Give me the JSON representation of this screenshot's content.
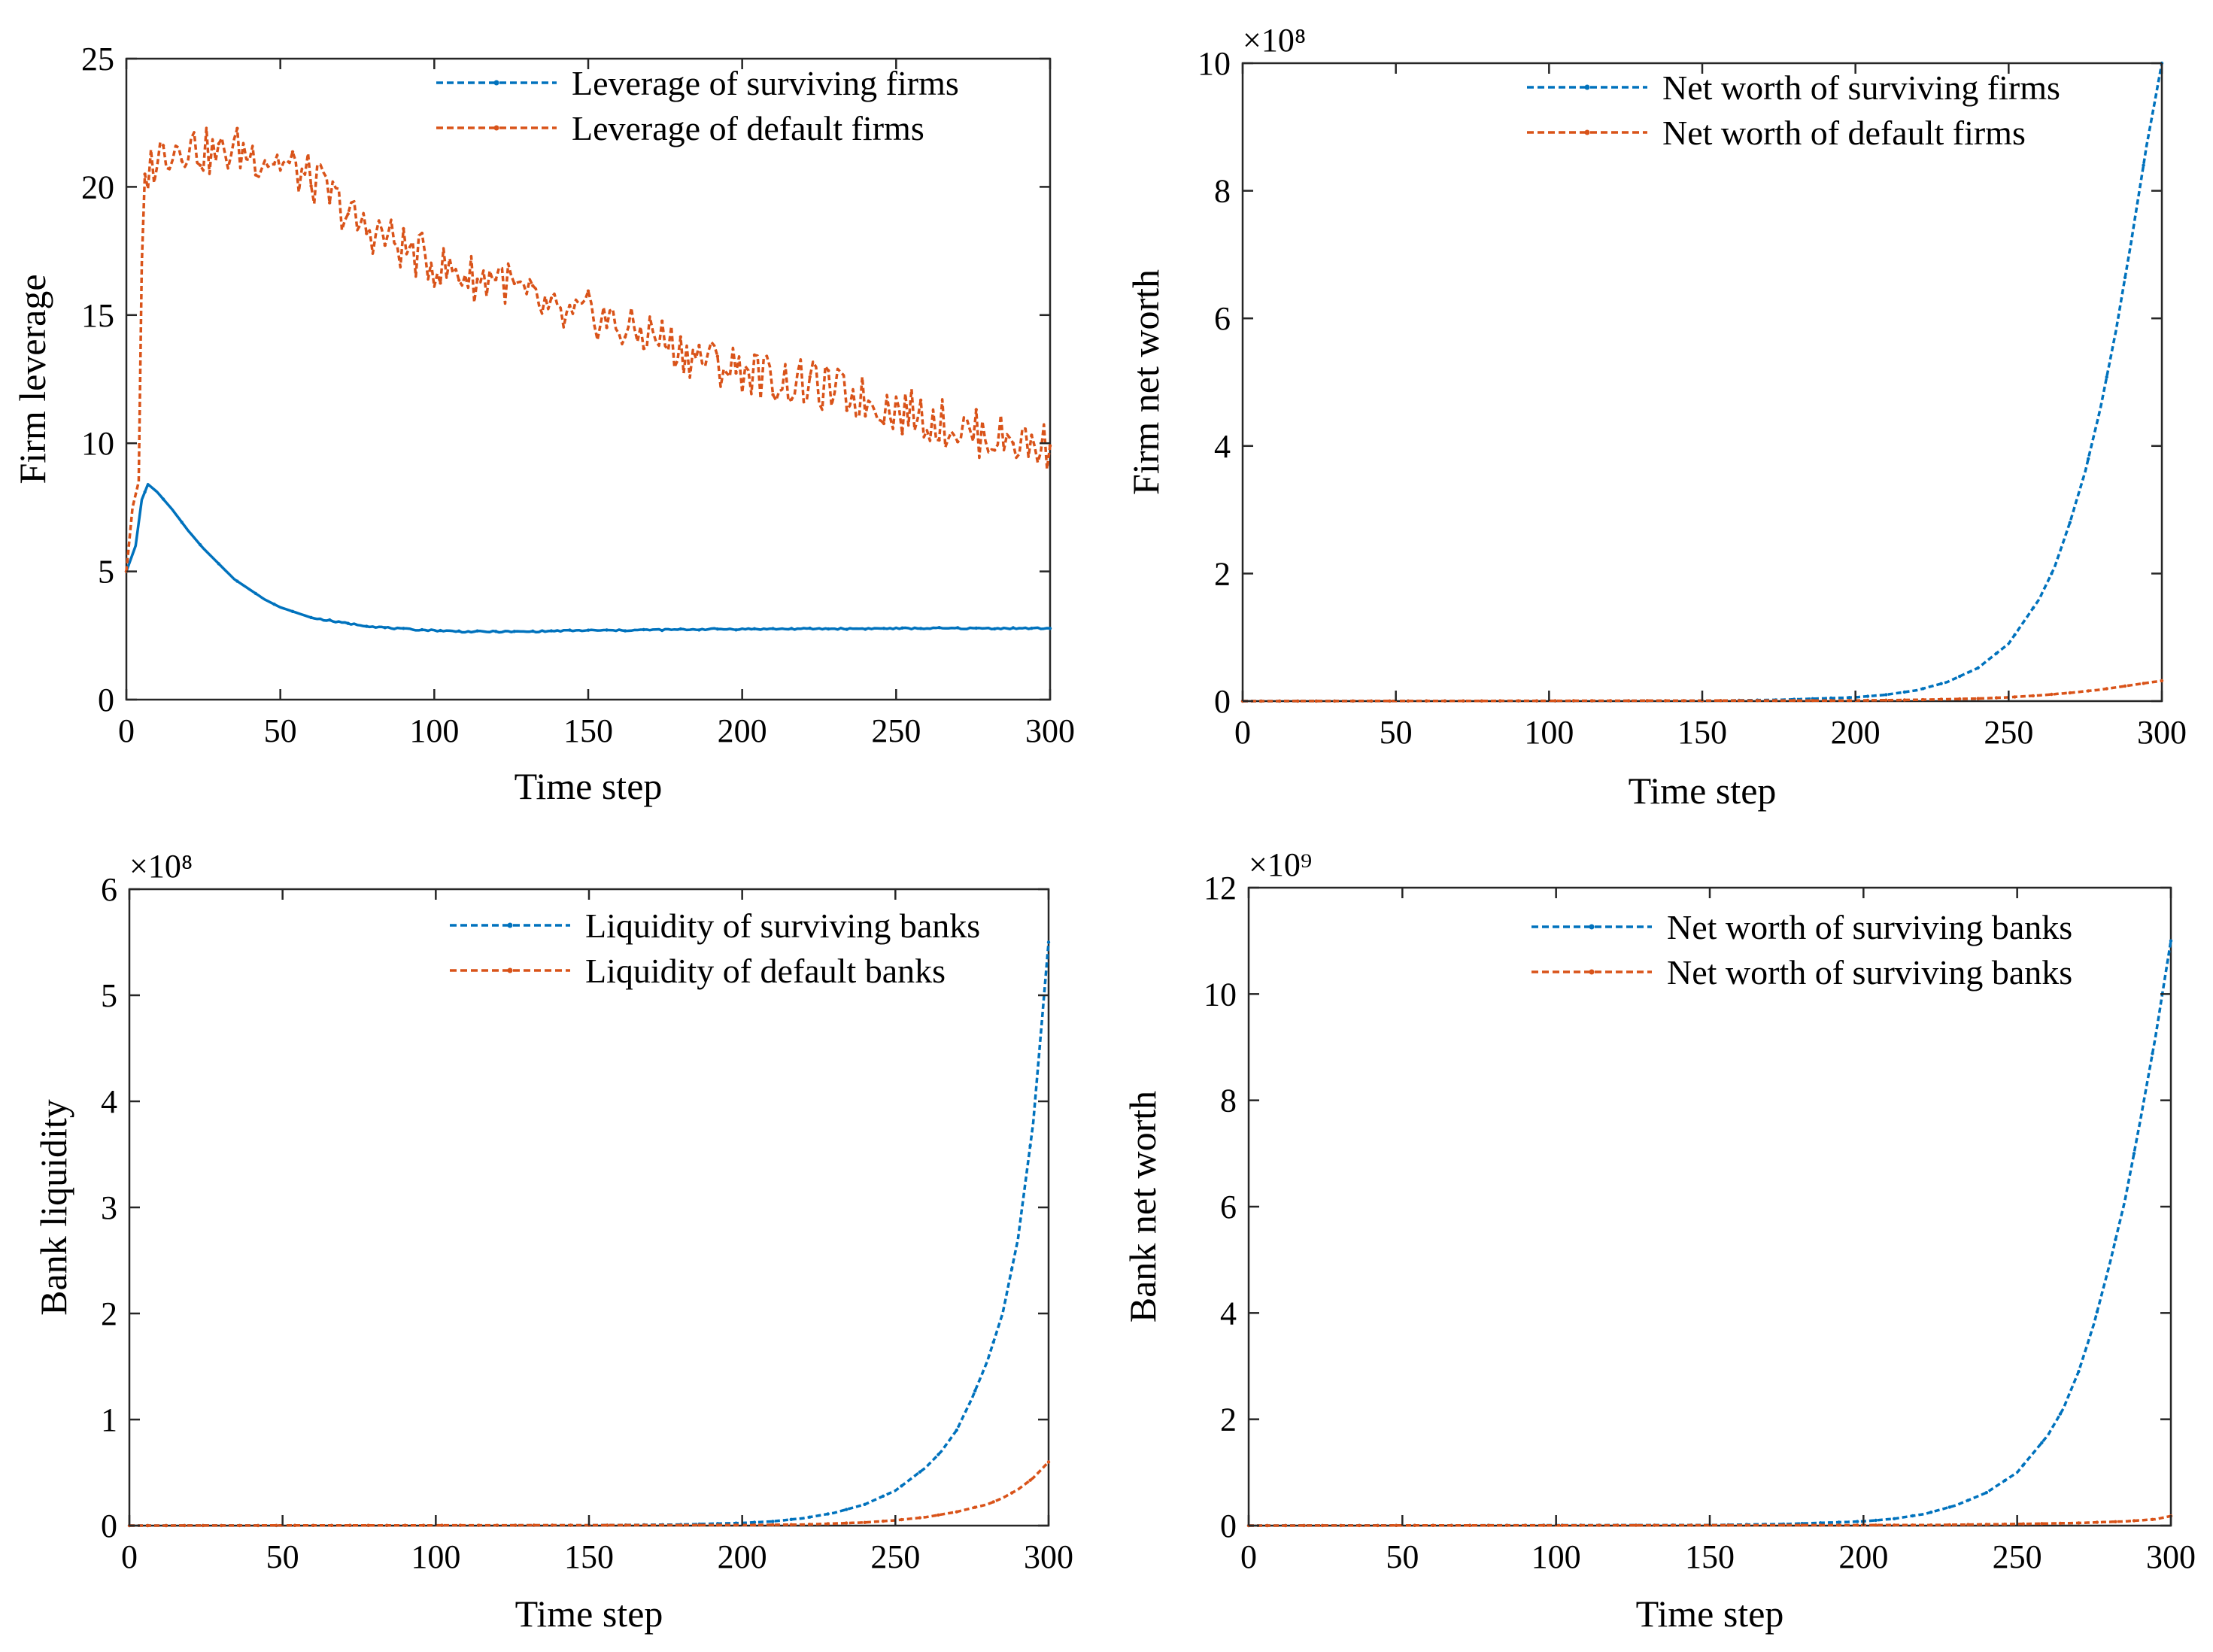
{
  "figure": {
    "panels": [
      "panel-a",
      "panel-b",
      "panel-c",
      "panel-d"
    ]
  },
  "chart_data": [
    {
      "id": "panel-a",
      "type": "line",
      "title": "",
      "xlabel": "Time step",
      "ylabel": "Firm leverage",
      "xlim": [
        0,
        300
      ],
      "ylim": [
        0,
        25
      ],
      "xticks": [
        0,
        50,
        100,
        150,
        200,
        250,
        300
      ],
      "yticks": [
        0,
        5,
        10,
        15,
        20,
        25
      ],
      "exponent_label": "",
      "legend_position": "top-right",
      "series": [
        {
          "name": "Leverage of surviving firms",
          "color": "#0072bd",
          "style": "solid",
          "points": [
            [
              0,
              5.0
            ],
            [
              3,
              6.0
            ],
            [
              5,
              7.8
            ],
            [
              7,
              8.4
            ],
            [
              10,
              8.1
            ],
            [
              15,
              7.4
            ],
            [
              20,
              6.6
            ],
            [
              25,
              5.9
            ],
            [
              30,
              5.3
            ],
            [
              35,
              4.7
            ],
            [
              40,
              4.3
            ],
            [
              45,
              3.9
            ],
            [
              50,
              3.6
            ],
            [
              55,
              3.4
            ],
            [
              60,
              3.2
            ],
            [
              70,
              3.0
            ],
            [
              80,
              2.85
            ],
            [
              90,
              2.75
            ],
            [
              100,
              2.7
            ],
            [
              110,
              2.65
            ],
            [
              120,
              2.65
            ],
            [
              130,
              2.65
            ],
            [
              140,
              2.68
            ],
            [
              150,
              2.7
            ],
            [
              160,
              2.7
            ],
            [
              170,
              2.72
            ],
            [
              180,
              2.73
            ],
            [
              190,
              2.75
            ],
            [
              200,
              2.75
            ],
            [
              220,
              2.76
            ],
            [
              240,
              2.77
            ],
            [
              260,
              2.78
            ],
            [
              280,
              2.78
            ],
            [
              300,
              2.78
            ]
          ]
        },
        {
          "name": "Leverage of default firms",
          "color": "#d95319",
          "style": "dashed",
          "points": [
            [
              0,
              5.0
            ],
            [
              2,
              7.5
            ],
            [
              4,
              8.5
            ],
            [
              5,
              17.0
            ],
            [
              6,
              20.5
            ],
            [
              8,
              20.8
            ],
            [
              10,
              21.2
            ],
            [
              15,
              21.6
            ],
            [
              20,
              21.7
            ],
            [
              25,
              21.4
            ],
            [
              30,
              21.2
            ],
            [
              35,
              21.5
            ],
            [
              40,
              21.3
            ],
            [
              45,
              21.2
            ],
            [
              50,
              21.0
            ],
            [
              55,
              20.6
            ],
            [
              60,
              20.3
            ],
            [
              65,
              19.8
            ],
            [
              70,
              19.2
            ],
            [
              75,
              18.5
            ],
            [
              80,
              18.3
            ],
            [
              85,
              18.0
            ],
            [
              90,
              17.6
            ],
            [
              95,
              17.3
            ],
            [
              100,
              17.0
            ],
            [
              105,
              16.7
            ],
            [
              110,
              16.6
            ],
            [
              115,
              16.3
            ],
            [
              120,
              16.7
            ],
            [
              125,
              16.1
            ],
            [
              130,
              15.6
            ],
            [
              135,
              15.3
            ],
            [
              140,
              14.9
            ],
            [
              145,
              14.8
            ],
            [
              150,
              15.0
            ],
            [
              155,
              14.9
            ],
            [
              160,
              14.5
            ],
            [
              165,
              14.3
            ],
            [
              170,
              14.3
            ],
            [
              175,
              14.0
            ],
            [
              180,
              13.6
            ],
            [
              185,
              13.4
            ],
            [
              190,
              13.2
            ],
            [
              195,
              13.0
            ],
            [
              200,
              12.9
            ],
            [
              205,
              12.7
            ],
            [
              210,
              12.5
            ],
            [
              215,
              12.4
            ],
            [
              220,
              12.3
            ],
            [
              225,
              12.2
            ],
            [
              230,
              12.0
            ],
            [
              235,
              11.9
            ],
            [
              240,
              11.7
            ],
            [
              245,
              11.6
            ],
            [
              250,
              11.3
            ],
            [
              255,
              11.2
            ],
            [
              260,
              11.0
            ],
            [
              265,
              10.8
            ],
            [
              270,
              10.6
            ],
            [
              275,
              10.4
            ],
            [
              280,
              10.3
            ],
            [
              285,
              10.2
            ],
            [
              290,
              10.1
            ],
            [
              295,
              9.9
            ],
            [
              300,
              9.9
            ]
          ]
        }
      ]
    },
    {
      "id": "panel-b",
      "type": "line",
      "title": "",
      "xlabel": "Time step",
      "ylabel": "Firm net worth",
      "xlim": [
        0,
        300
      ],
      "ylim": [
        0,
        10
      ],
      "xticks": [
        0,
        50,
        100,
        150,
        200,
        250,
        300
      ],
      "yticks": [
        0,
        2,
        4,
        6,
        8,
        10
      ],
      "exponent_label": "×10⁸",
      "legend_position": "top-right",
      "series": [
        {
          "name": "Net worth of surviving firms",
          "color": "#0072bd",
          "style": "dashed",
          "points": [
            [
              0,
              0
            ],
            [
              150,
              0.005
            ],
            [
              175,
              0.02
            ],
            [
              200,
              0.06
            ],
            [
              210,
              0.1
            ],
            [
              220,
              0.17
            ],
            [
              230,
              0.3
            ],
            [
              240,
              0.52
            ],
            [
              250,
              0.9
            ],
            [
              260,
              1.6
            ],
            [
              265,
              2.1
            ],
            [
              270,
              2.8
            ],
            [
              275,
              3.6
            ],
            [
              280,
              4.6
            ],
            [
              285,
              5.8
            ],
            [
              290,
              7.2
            ],
            [
              295,
              8.7
            ],
            [
              300,
              10.0
            ]
          ]
        },
        {
          "name": "Net worth of default firms",
          "color": "#d95319",
          "style": "dashed",
          "points": [
            [
              0,
              0
            ],
            [
              200,
              0.01
            ],
            [
              220,
              0.02
            ],
            [
              240,
              0.04
            ],
            [
              250,
              0.06
            ],
            [
              260,
              0.09
            ],
            [
              270,
              0.13
            ],
            [
              280,
              0.18
            ],
            [
              290,
              0.25
            ],
            [
              300,
              0.32
            ]
          ]
        }
      ]
    },
    {
      "id": "panel-c",
      "type": "line",
      "title": "",
      "xlabel": "Time step",
      "ylabel": "Bank liquidity",
      "xlim": [
        0,
        300
      ],
      "ylim": [
        0,
        6
      ],
      "xticks": [
        0,
        50,
        100,
        150,
        200,
        250,
        300
      ],
      "yticks": [
        0,
        1,
        2,
        3,
        4,
        5,
        6
      ],
      "exponent_label": "×10⁸",
      "legend_position": "top-right",
      "series": [
        {
          "name": "Liquidity of surviving banks",
          "color": "#0072bd",
          "style": "dashed",
          "points": [
            [
              0,
              0
            ],
            [
              150,
              0.003
            ],
            [
              180,
              0.01
            ],
            [
              200,
              0.025
            ],
            [
              210,
              0.04
            ],
            [
              220,
              0.07
            ],
            [
              230,
              0.12
            ],
            [
              240,
              0.2
            ],
            [
              250,
              0.33
            ],
            [
              260,
              0.55
            ],
            [
              265,
              0.7
            ],
            [
              270,
              0.9
            ],
            [
              275,
              1.2
            ],
            [
              280,
              1.55
            ],
            [
              285,
              2.0
            ],
            [
              290,
              2.7
            ],
            [
              295,
              3.8
            ],
            [
              300,
              5.5
            ]
          ]
        },
        {
          "name": "Liquidity of default banks",
          "color": "#d95319",
          "style": "dashed",
          "points": [
            [
              0,
              0
            ],
            [
              200,
              0.005
            ],
            [
              220,
              0.01
            ],
            [
              240,
              0.03
            ],
            [
              250,
              0.05
            ],
            [
              260,
              0.08
            ],
            [
              270,
              0.13
            ],
            [
              280,
              0.2
            ],
            [
              285,
              0.26
            ],
            [
              290,
              0.34
            ],
            [
              295,
              0.45
            ],
            [
              300,
              0.6
            ]
          ]
        }
      ]
    },
    {
      "id": "panel-d",
      "type": "line",
      "title": "",
      "xlabel": "Time step",
      "ylabel": "Bank net worth",
      "xlim": [
        0,
        300
      ],
      "ylim": [
        0,
        12
      ],
      "xticks": [
        0,
        50,
        100,
        150,
        200,
        250,
        300
      ],
      "yticks": [
        0,
        2,
        4,
        6,
        8,
        10,
        12
      ],
      "exponent_label": "×10⁹",
      "legend_position": "top-right",
      "series": [
        {
          "name": "Net worth of surviving banks",
          "color": "#0072bd",
          "style": "dashed",
          "points": [
            [
              0,
              0
            ],
            [
              150,
              0.01
            ],
            [
              175,
              0.03
            ],
            [
              200,
              0.08
            ],
            [
              210,
              0.13
            ],
            [
              220,
              0.22
            ],
            [
              230,
              0.38
            ],
            [
              240,
              0.62
            ],
            [
              250,
              1.0
            ],
            [
              260,
              1.7
            ],
            [
              265,
              2.2
            ],
            [
              270,
              2.9
            ],
            [
              275,
              3.8
            ],
            [
              280,
              4.9
            ],
            [
              285,
              6.1
            ],
            [
              290,
              7.6
            ],
            [
              295,
              9.2
            ],
            [
              300,
              11.0
            ]
          ]
        },
        {
          "name": "Net worth of surviving banks",
          "color": "#d95319",
          "style": "dashed",
          "points": [
            [
              0,
              0
            ],
            [
              220,
              0.01
            ],
            [
              250,
              0.03
            ],
            [
              270,
              0.05
            ],
            [
              285,
              0.08
            ],
            [
              295,
              0.12
            ],
            [
              300,
              0.18
            ]
          ]
        }
      ]
    }
  ]
}
